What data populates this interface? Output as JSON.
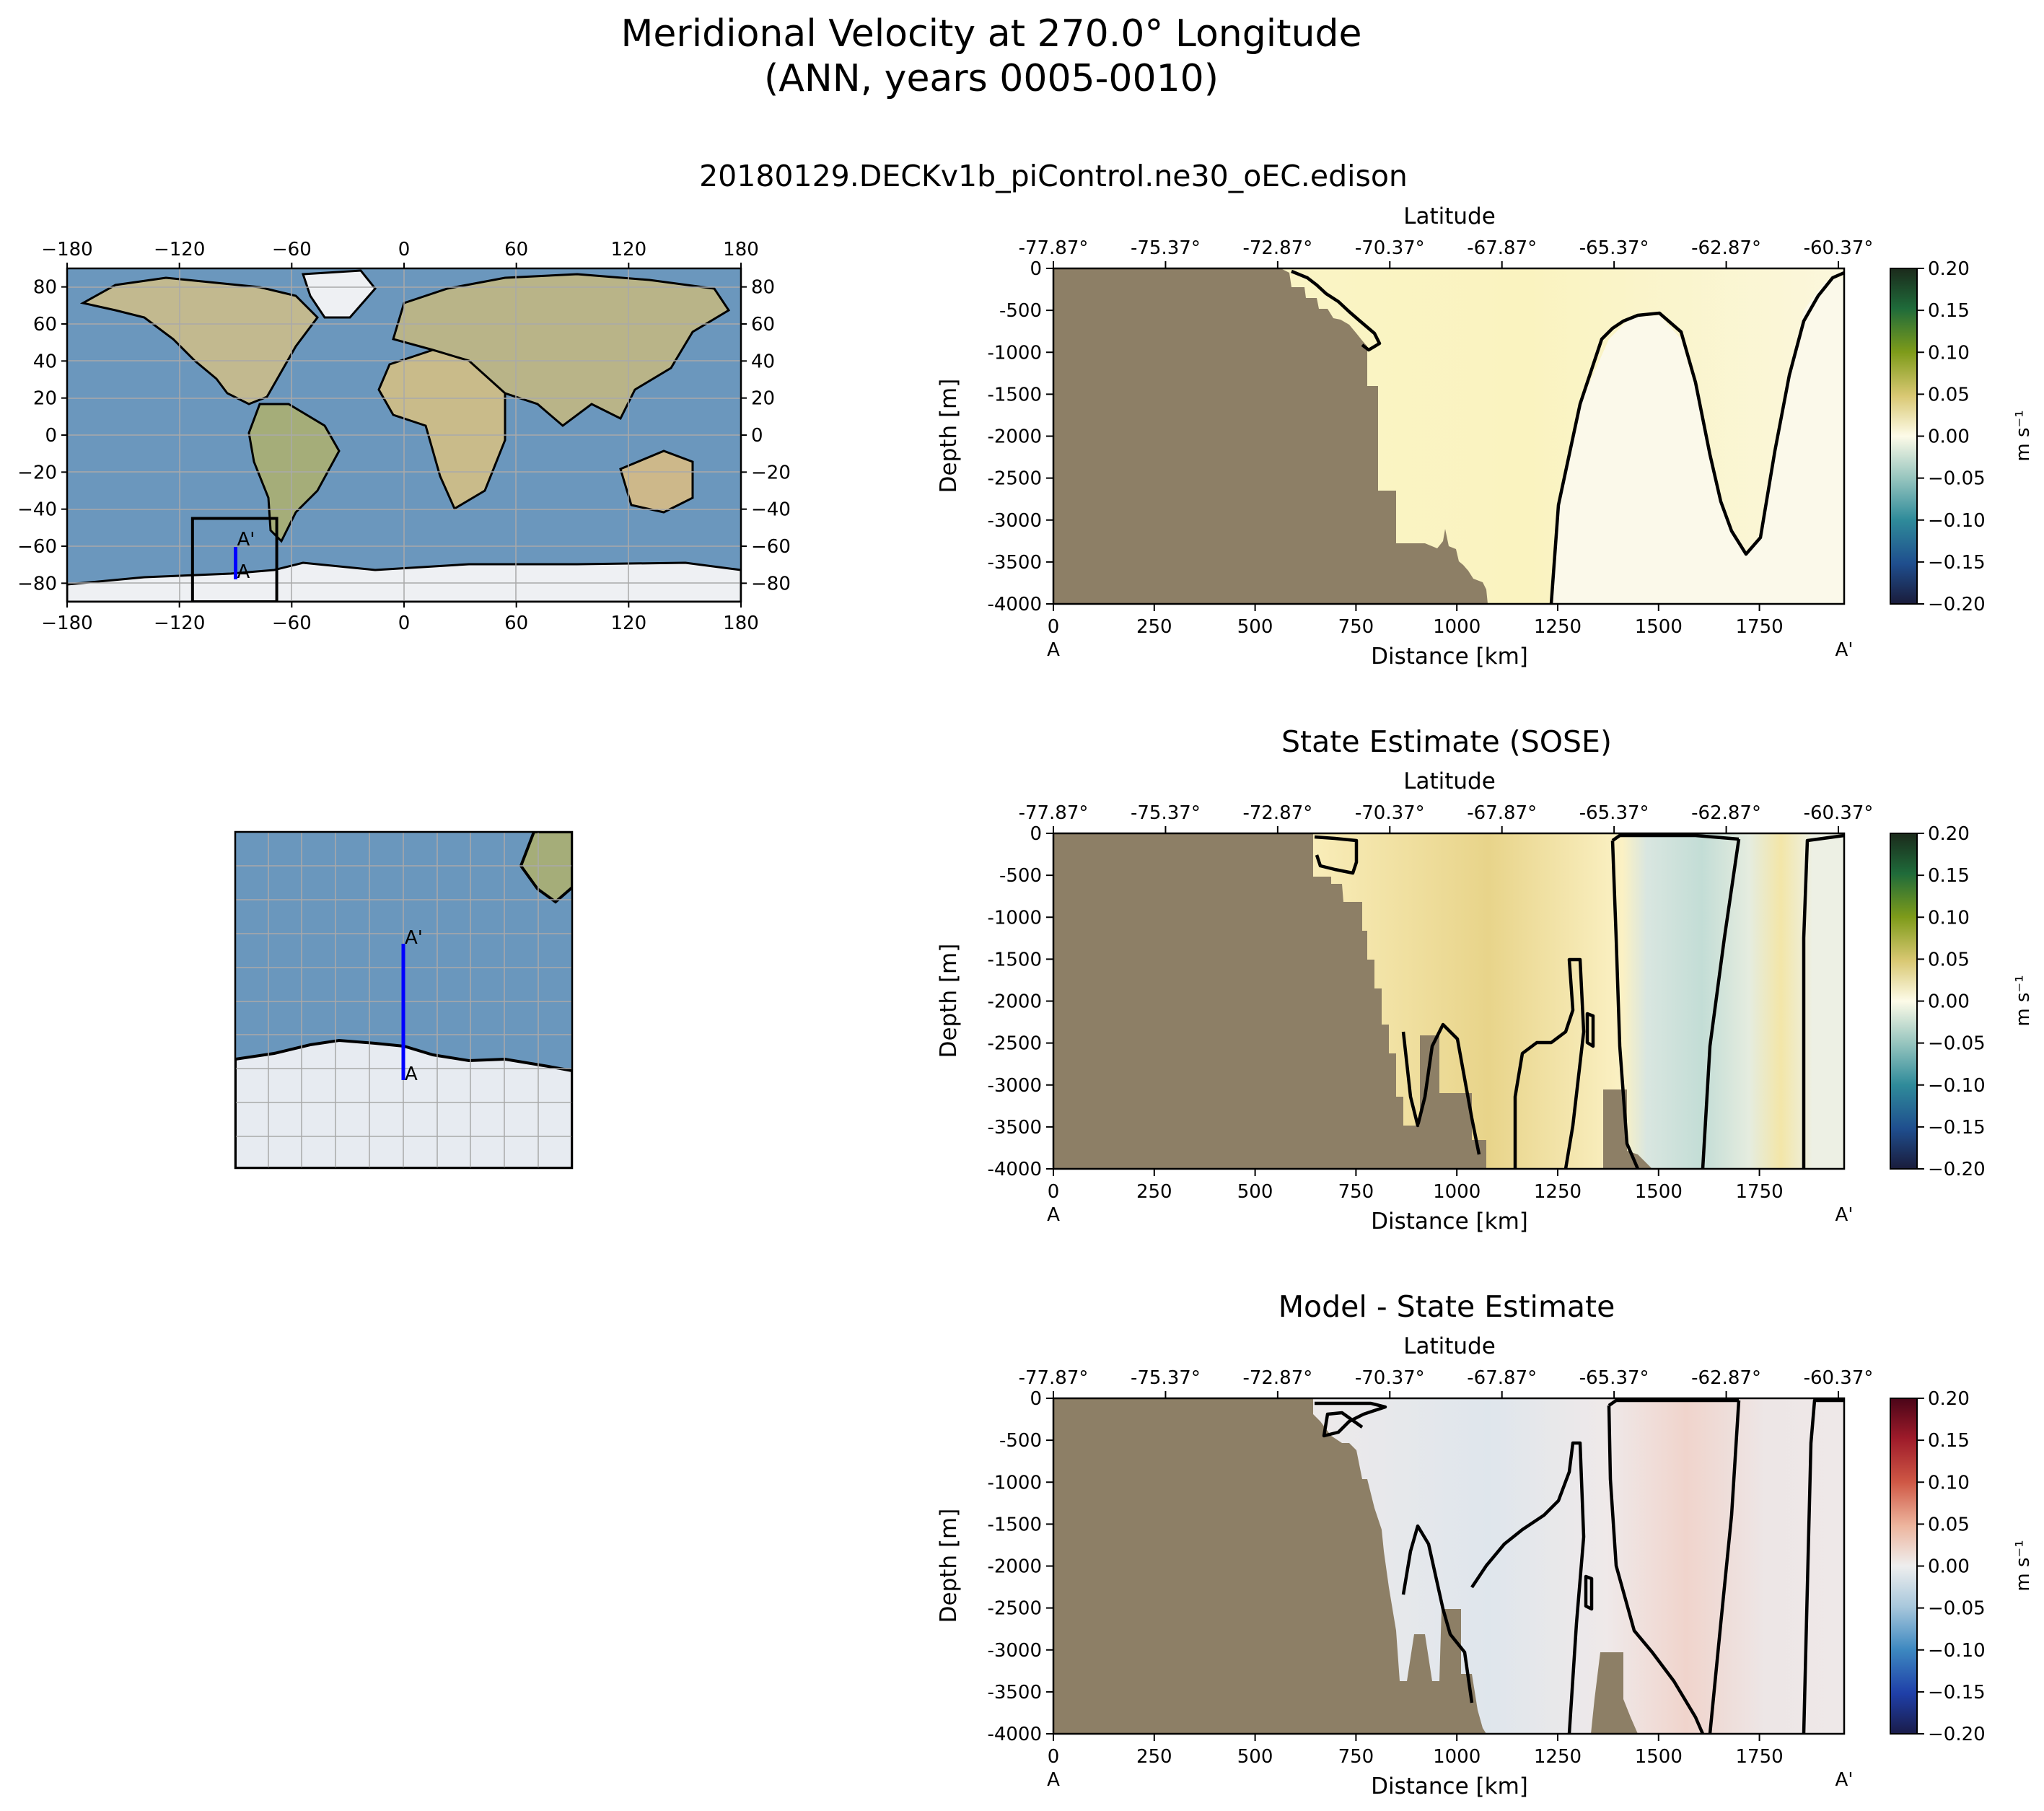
{
  "suptitle_line1": "Meridional Velocity at 270.0° Longitude",
  "suptitle_line2": "(ANN, years 0005-0010)",
  "colors": {
    "land": "#8d7f66",
    "ocean": "#6b97bd",
    "ice": "#e6eaf0",
    "contour": "#000000",
    "transect": "#0000ff"
  },
  "maps": {
    "global": {
      "x_ticks": [
        "−180",
        "−120",
        "−60",
        "0",
        "60",
        "120",
        "180"
      ],
      "y_ticks": [
        "80",
        "60",
        "40",
        "20",
        "0",
        "−20",
        "−40",
        "−60",
        "−80"
      ],
      "transect_label_start": "A",
      "transect_label_end": "A'",
      "transect_lon": -90,
      "transect_lat_start": -77.87,
      "transect_lat_end": -60.37,
      "inset_box_lon": [
        -113,
        -68
      ],
      "inset_box_lat": [
        -90,
        -45
      ]
    },
    "inset": {
      "transect_label_start": "A",
      "transect_label_end": "A'"
    }
  },
  "chart_data": [
    {
      "type": "heatmap",
      "title": "20180129.DECKv1b_piControl.ne30_oEC.edison",
      "xlabel": "Distance [km]",
      "ylabel": "Depth [m]",
      "top_xlabel": "Latitude",
      "xlim": [
        0,
        1960
      ],
      "ylim": [
        -4000,
        0
      ],
      "x_ticks": [
        "0",
        "250",
        "500",
        "750",
        "1000",
        "1250",
        "1500",
        "1750"
      ],
      "y_ticks": [
        "0",
        "-500",
        "-1000",
        "-1500",
        "-2000",
        "-2500",
        "-3000",
        "-3500",
        "-4000"
      ],
      "lat_ticks": [
        "-77.87°",
        "-75.37°",
        "-72.87°",
        "-70.37°",
        "-67.87°",
        "-65.37°",
        "-62.87°",
        "-60.37°"
      ],
      "endpoint_start": "A",
      "endpoint_end": "A'",
      "colorbar": {
        "label": "m s⁻¹",
        "ticks": [
          "0.20",
          "0.15",
          "0.10",
          "0.05",
          "0.00",
          "−0.05",
          "−0.10",
          "−0.15",
          "−0.20"
        ],
        "range": [
          -0.2,
          0.2
        ],
        "colormap": "ocean-velocity"
      }
    },
    {
      "type": "heatmap",
      "title": "State Estimate (SOSE)",
      "xlabel": "Distance [km]",
      "ylabel": "Depth [m]",
      "top_xlabel": "Latitude",
      "xlim": [
        0,
        1960
      ],
      "ylim": [
        -4000,
        0
      ],
      "x_ticks": [
        "0",
        "250",
        "500",
        "750",
        "1000",
        "1250",
        "1500",
        "1750"
      ],
      "y_ticks": [
        "0",
        "-500",
        "-1000",
        "-1500",
        "-2000",
        "-2500",
        "-3000",
        "-3500",
        "-4000"
      ],
      "lat_ticks": [
        "-77.87°",
        "-75.37°",
        "-72.87°",
        "-70.37°",
        "-67.87°",
        "-65.37°",
        "-62.87°",
        "-60.37°"
      ],
      "endpoint_start": "A",
      "endpoint_end": "A'",
      "colorbar": {
        "label": "m s⁻¹",
        "ticks": [
          "0.20",
          "0.15",
          "0.10",
          "0.05",
          "0.00",
          "−0.05",
          "−0.10",
          "−0.15",
          "−0.20"
        ],
        "range": [
          -0.2,
          0.2
        ],
        "colormap": "ocean-velocity"
      }
    },
    {
      "type": "heatmap",
      "title": "Model - State Estimate",
      "xlabel": "Distance [km]",
      "ylabel": "Depth [m]",
      "top_xlabel": "Latitude",
      "xlim": [
        0,
        1960
      ],
      "ylim": [
        -4000,
        0
      ],
      "x_ticks": [
        "0",
        "250",
        "500",
        "750",
        "1000",
        "1250",
        "1500",
        "1750"
      ],
      "y_ticks": [
        "0",
        "-500",
        "-1000",
        "-1500",
        "-2000",
        "-2500",
        "-3000",
        "-3500",
        "-4000"
      ],
      "lat_ticks": [
        "-77.87°",
        "-75.37°",
        "-72.87°",
        "-70.37°",
        "-67.87°",
        "-65.37°",
        "-62.87°",
        "-60.37°"
      ],
      "endpoint_start": "A",
      "endpoint_end": "A'",
      "colorbar": {
        "label": "m s⁻¹",
        "ticks": [
          "0.20",
          "0.15",
          "0.10",
          "0.05",
          "0.00",
          "−0.05",
          "−0.10",
          "−0.15",
          "−0.20"
        ],
        "range": [
          -0.2,
          0.2
        ],
        "colormap": "red-blue-diverging"
      }
    }
  ]
}
